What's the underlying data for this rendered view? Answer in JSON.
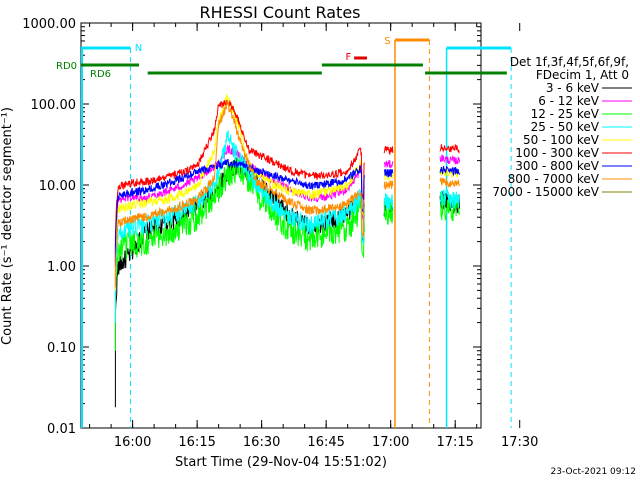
{
  "chart_data": {
    "type": "line",
    "title": "RHESSI Count Rates",
    "xlabel": "Start Time (29-Nov-04 15:51:02)",
    "ylabel": "Count Rate (s⁻¹ detector segment⁻¹)",
    "y_scale": "log",
    "ylim": [
      0.01,
      1000
    ],
    "xlim_minutes": [
      -3,
      90
    ],
    "x_ticks": [
      {
        "t": 9,
        "label": "16:00"
      },
      {
        "t": 24,
        "label": "16:15"
      },
      {
        "t": 39,
        "label": "16:30"
      },
      {
        "t": 54,
        "label": "16:45"
      },
      {
        "t": 69,
        "label": "17:00"
      },
      {
        "t": 84,
        "label": "17:15"
      },
      {
        "t": 99,
        "label": "17:30"
      }
    ],
    "y_ticks": [
      "1000.00",
      "100.00",
      "10.00",
      "1.00",
      "0.10",
      "0.01"
    ],
    "legend_header": [
      "Det 1f,3f,4f,5f,6f,9f,",
      "FDecim 1, Att 0"
    ],
    "series": [
      {
        "name": "3 - 6 keV",
        "color": "#000000",
        "points": [
          [
            5,
            0.9
          ],
          [
            8,
            1.3
          ],
          [
            12,
            2.6
          ],
          [
            16,
            3.2
          ],
          [
            21,
            4.2
          ],
          [
            24,
            5.6
          ],
          [
            28,
            8.2
          ],
          [
            31,
            14
          ],
          [
            33,
            17
          ],
          [
            35,
            16
          ],
          [
            38,
            11
          ],
          [
            42,
            6.5
          ],
          [
            46,
            4.0
          ],
          [
            50,
            3.0
          ],
          [
            53,
            3.3
          ],
          [
            57,
            3.9
          ],
          [
            59,
            4.4
          ],
          [
            62,
            7.5
          ],
          [
            63,
            4.8
          ],
          [
            68,
            5.0
          ],
          [
            69,
            7.0
          ],
          [
            72,
            5.8
          ]
        ]
      },
      {
        "name": "6 - 12 keV",
        "color": "#ff00ff",
        "points": [
          [
            5,
            6.5
          ],
          [
            8,
            7.0
          ],
          [
            12,
            7.0
          ],
          [
            16,
            8.0
          ],
          [
            21,
            10
          ],
          [
            24,
            12
          ],
          [
            28,
            17
          ],
          [
            30,
            21
          ],
          [
            31,
            28
          ],
          [
            33,
            25
          ],
          [
            35,
            20
          ],
          [
            38,
            15
          ],
          [
            42,
            11
          ],
          [
            46,
            8.5
          ],
          [
            50,
            7.0
          ],
          [
            53,
            7.0
          ],
          [
            57,
            8.0
          ],
          [
            59,
            9.0
          ],
          [
            62,
            15
          ],
          [
            63,
            9.0
          ],
          [
            68,
            18
          ],
          [
            69,
            22
          ],
          [
            72,
            20
          ]
        ]
      },
      {
        "name": "12 - 25 keV",
        "color": "#00ff00",
        "points": [
          [
            5,
            1.5
          ],
          [
            8,
            1.8
          ],
          [
            12,
            2.0
          ],
          [
            16,
            2.4
          ],
          [
            21,
            3.1
          ],
          [
            24,
            4.2
          ],
          [
            28,
            7.5
          ],
          [
            31,
            13
          ],
          [
            33,
            16
          ],
          [
            35,
            14
          ],
          [
            38,
            8.0
          ],
          [
            42,
            4.2
          ],
          [
            46,
            2.8
          ],
          [
            50,
            2.1
          ],
          [
            53,
            2.4
          ],
          [
            57,
            2.9
          ],
          [
            59,
            3.0
          ],
          [
            62,
            4.9
          ],
          [
            63,
            3.2
          ],
          [
            68,
            4.8
          ],
          [
            69,
            5.5
          ],
          [
            72,
            5.2
          ]
        ]
      },
      {
        "name": "25 - 50 keV",
        "color": "#00ffff",
        "points": [
          [
            5,
            2.5
          ],
          [
            8,
            2.9
          ],
          [
            12,
            3.2
          ],
          [
            16,
            3.8
          ],
          [
            21,
            4.9
          ],
          [
            24,
            6.3
          ],
          [
            28,
            10
          ],
          [
            30,
            22
          ],
          [
            31,
            43
          ],
          [
            32,
            30
          ],
          [
            35,
            16
          ],
          [
            38,
            10
          ],
          [
            42,
            5.8
          ],
          [
            46,
            4.0
          ],
          [
            50,
            3.2
          ],
          [
            53,
            3.6
          ],
          [
            57,
            4.2
          ],
          [
            59,
            4.6
          ],
          [
            62,
            7.0
          ],
          [
            63,
            4.8
          ],
          [
            68,
            6.0
          ],
          [
            69,
            7.0
          ],
          [
            72,
            6.6
          ]
        ]
      },
      {
        "name": "50 - 100 keV",
        "color": "#ffff00",
        "points": [
          [
            5,
            5.0
          ],
          [
            8,
            5.5
          ],
          [
            12,
            6.0
          ],
          [
            16,
            6.5
          ],
          [
            21,
            7.8
          ],
          [
            24,
            9.5
          ],
          [
            28,
            27
          ],
          [
            29,
            62
          ],
          [
            31,
            120
          ],
          [
            32,
            92
          ],
          [
            34,
            48
          ],
          [
            36,
            17
          ],
          [
            38,
            14
          ],
          [
            42,
            10
          ],
          [
            46,
            8.2
          ],
          [
            50,
            7.5
          ],
          [
            53,
            8.0
          ],
          [
            57,
            9.0
          ],
          [
            59,
            10
          ],
          [
            62,
            18
          ],
          [
            63,
            10
          ],
          [
            68,
            13
          ],
          [
            69,
            15
          ],
          [
            72,
            14
          ]
        ]
      },
      {
        "name": "100 - 300 keV",
        "color": "#ff0000",
        "points": [
          [
            5,
            9.5
          ],
          [
            8,
            10.5
          ],
          [
            12,
            11
          ],
          [
            16,
            12
          ],
          [
            21,
            14.5
          ],
          [
            24,
            17
          ],
          [
            28,
            48
          ],
          [
            29,
            95
          ],
          [
            31,
            108
          ],
          [
            32,
            95
          ],
          [
            34,
            55
          ],
          [
            36,
            27
          ],
          [
            38,
            24
          ],
          [
            42,
            19
          ],
          [
            46,
            15
          ],
          [
            50,
            13
          ],
          [
            53,
            13
          ],
          [
            57,
            14
          ],
          [
            59,
            15
          ],
          [
            62,
            27
          ],
          [
            63,
            16
          ],
          [
            68,
            27
          ],
          [
            69,
            29
          ],
          [
            72,
            28
          ]
        ]
      },
      {
        "name": "300 - 800 keV",
        "color": "#0000ff",
        "points": [
          [
            5,
            7.0
          ],
          [
            8,
            8.0
          ],
          [
            12,
            8.5
          ],
          [
            16,
            10
          ],
          [
            21,
            12.5
          ],
          [
            24,
            14.5
          ],
          [
            28,
            17
          ],
          [
            31,
            19
          ],
          [
            33,
            18.5
          ],
          [
            35,
            17.5
          ],
          [
            38,
            15
          ],
          [
            42,
            13
          ],
          [
            46,
            11
          ],
          [
            50,
            10
          ],
          [
            53,
            10
          ],
          [
            57,
            11
          ],
          [
            59,
            12
          ],
          [
            62,
            16
          ],
          [
            63,
            12
          ],
          [
            68,
            14
          ],
          [
            69,
            15.5
          ],
          [
            72,
            15
          ]
        ]
      },
      {
        "name": "800 - 7000 keV",
        "color": "#ff8c00",
        "points": [
          [
            5,
            3.4
          ],
          [
            8,
            3.7
          ],
          [
            12,
            4.0
          ],
          [
            16,
            4.6
          ],
          [
            21,
            5.6
          ],
          [
            24,
            6.6
          ],
          [
            28,
            12
          ],
          [
            29,
            55
          ],
          [
            31,
            100
          ],
          [
            32,
            75
          ],
          [
            34,
            35
          ],
          [
            36,
            18
          ],
          [
            38,
            11
          ],
          [
            42,
            8.0
          ],
          [
            46,
            6.0
          ],
          [
            50,
            4.8
          ],
          [
            53,
            5.0
          ],
          [
            57,
            5.5
          ],
          [
            59,
            5.8
          ],
          [
            62,
            8.5
          ],
          [
            63,
            5.8
          ],
          [
            68,
            10
          ],
          [
            69,
            11
          ],
          [
            72,
            10.5
          ]
        ]
      },
      {
        "name": "7000 - 15000 keV",
        "color": "#7f7f00",
        "points": []
      }
    ],
    "attenuator_labels": [
      "RD0",
      "RD6"
    ],
    "state_flags": [
      "N",
      "F",
      "S"
    ],
    "footer_date": "23-Oct-2021 09:12"
  }
}
